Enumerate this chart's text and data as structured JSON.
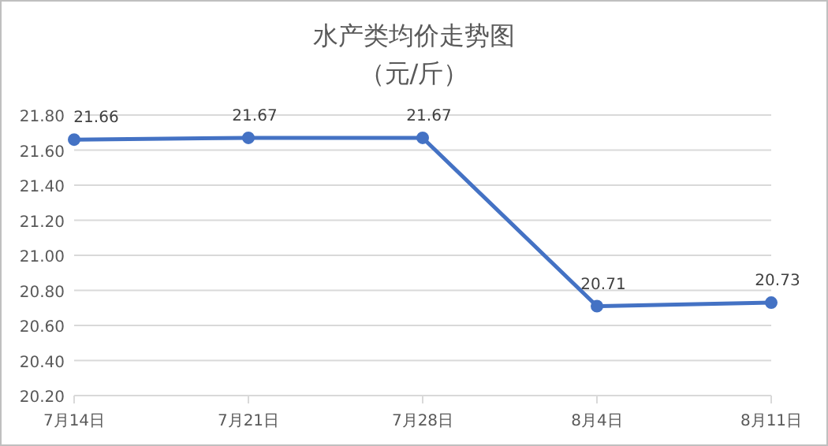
{
  "chart_data": {
    "type": "line",
    "title": "水产类均价走势图",
    "subtitle": "（元/斤）",
    "categories": [
      "7月14日",
      "7月21日",
      "7月28日",
      "8月4日",
      "8月11日"
    ],
    "series": [
      {
        "color": "#4472c4",
        "values": [
          21.66,
          21.67,
          21.67,
          20.71,
          20.73
        ]
      }
    ],
    "ylim": [
      20.2,
      21.8
    ],
    "yticks": [
      {
        "value": 20.2,
        "label": "20.20"
      },
      {
        "value": 20.4,
        "label": "20.40"
      },
      {
        "value": 20.6,
        "label": "20.60"
      },
      {
        "value": 20.8,
        "label": "20.80"
      },
      {
        "value": 21.0,
        "label": "21.00"
      },
      {
        "value": 21.2,
        "label": "21.20"
      },
      {
        "value": 21.4,
        "label": "21.40"
      },
      {
        "value": 21.6,
        "label": "21.60"
      },
      {
        "value": 21.8,
        "label": "21.80"
      }
    ],
    "grid": "y",
    "marker": "circle",
    "line_style": "solid",
    "data_labels": true
  }
}
